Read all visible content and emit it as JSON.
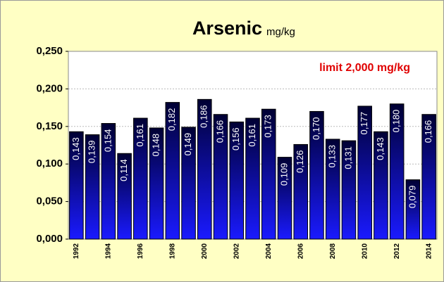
{
  "chart_data": {
    "type": "bar",
    "title": "Arsenic",
    "title_unit": "mg/kg",
    "annotation": "limit 2,000 mg/kg",
    "categories": [
      "1992",
      null,
      "1994",
      null,
      "1996",
      null,
      "1998",
      null,
      "2000",
      null,
      "2002",
      null,
      "2004",
      null,
      "2006",
      null,
      "2008",
      null,
      "2010",
      null,
      "2012",
      null,
      "2014"
    ],
    "values": [
      0.143,
      0.139,
      0.154,
      0.114,
      0.161,
      0.148,
      0.182,
      0.149,
      0.186,
      0.166,
      0.156,
      0.161,
      0.173,
      0.109,
      0.126,
      0.17,
      0.133,
      0.131,
      0.177,
      0.143,
      0.18,
      0.079,
      0.166
    ],
    "value_labels": [
      "0,143",
      "0,139",
      "0,154",
      "0,114",
      "0,161",
      "0,148",
      "0,182",
      "0,149",
      "0,186",
      "0,166",
      "0,156",
      "0,161",
      "0,173",
      "0,109",
      "0,126",
      "0,170",
      "0,133",
      "0,131",
      "0,177",
      "0,143",
      "0,180",
      "0,079",
      "0,166"
    ],
    "color": "#1a1aff",
    "ylim": [
      0,
      0.25
    ],
    "yticks": [
      {
        "value": 0,
        "label": "0,000"
      },
      {
        "value": 0.05,
        "label": "0,050"
      },
      {
        "value": 0.1,
        "label": "0,100"
      },
      {
        "value": 0.15,
        "label": "0,150"
      },
      {
        "value": 0.2,
        "label": "0,200"
      },
      {
        "value": 0.25,
        "label": "0,250"
      }
    ],
    "grid": true
  }
}
